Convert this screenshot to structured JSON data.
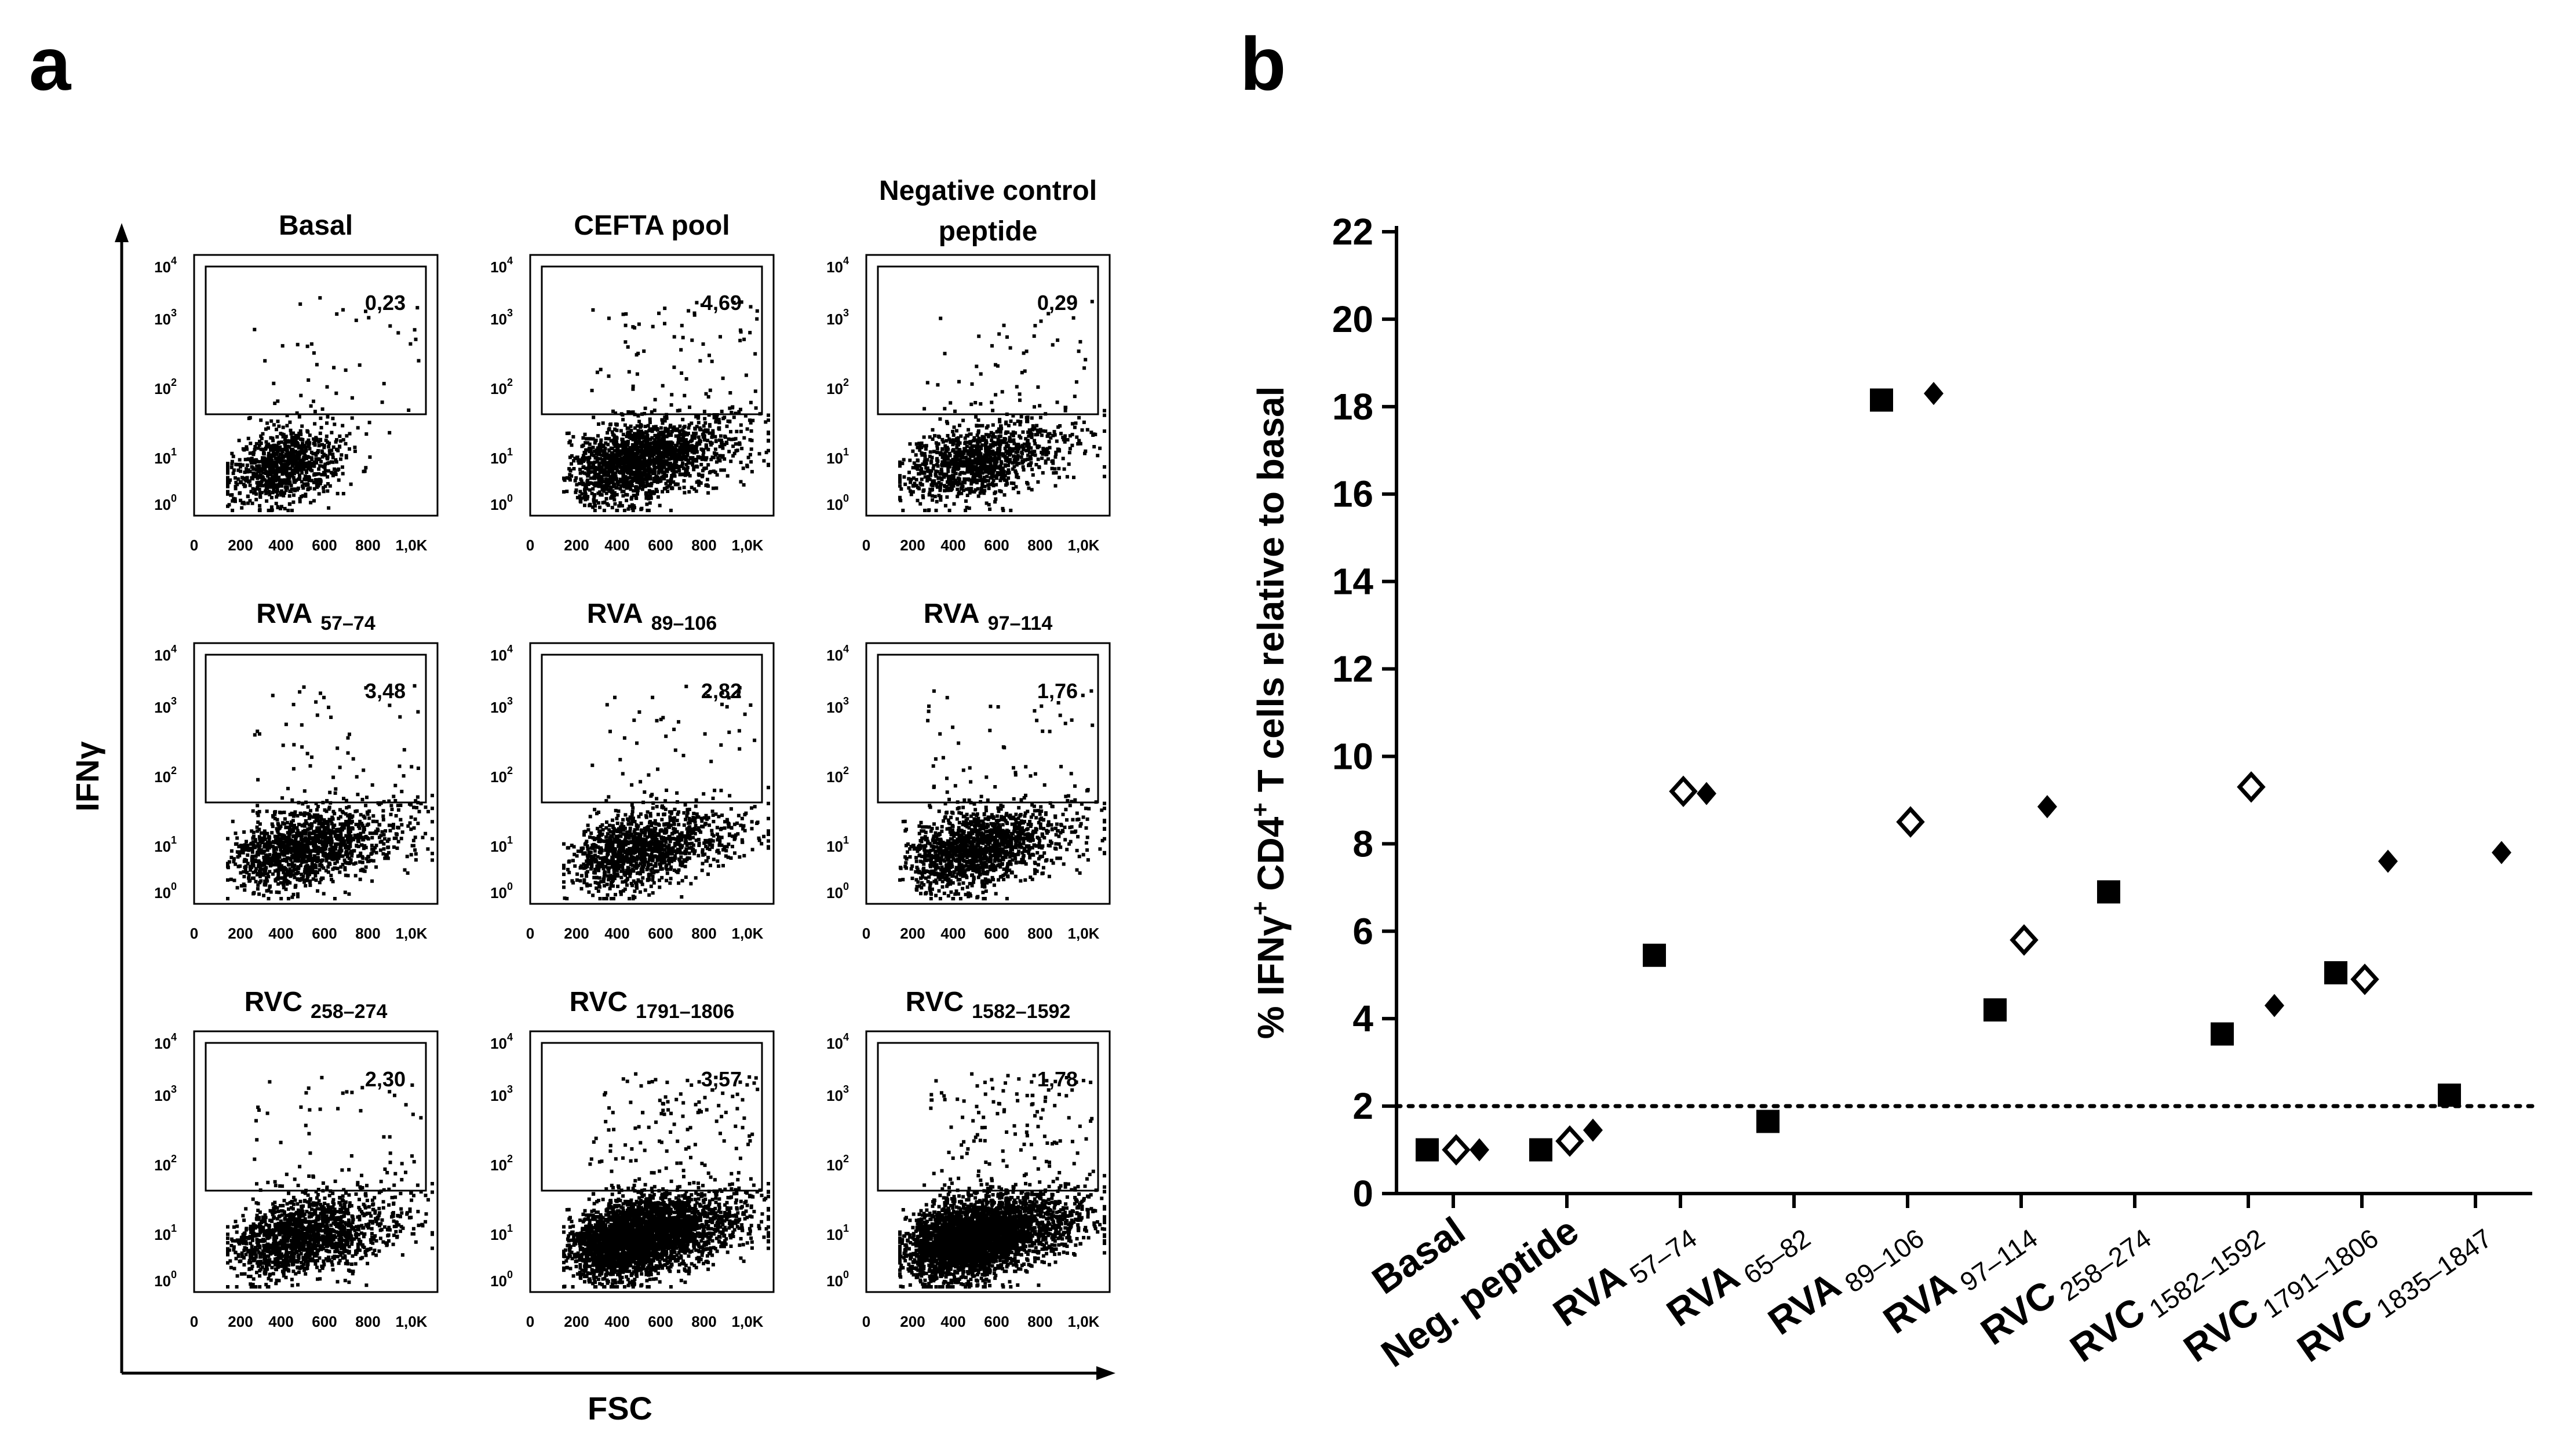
{
  "panel_a": {
    "label": "a",
    "y_axis_label": "IFNγ",
    "x_axis_label": "FSC",
    "x_ticks": [
      "0",
      "200",
      "400",
      "600",
      "800",
      "1,0K"
    ],
    "y_ticks": [
      "10",
      "10",
      "10",
      "10",
      "10"
    ],
    "y_tick_exps": [
      "0",
      "1",
      "2",
      "3",
      "4"
    ],
    "plots": [
      {
        "title": "Basal",
        "subscript": "",
        "gate_value": "0,23"
      },
      {
        "title": "CEFTA pool",
        "subscript": "",
        "gate_value": "4,69"
      },
      {
        "title": "Negative control",
        "title_line2": "peptide",
        "subscript": "",
        "gate_value": "0,29"
      },
      {
        "title": "RVA",
        "subscript": "57–74",
        "gate_value": "3,48"
      },
      {
        "title": "RVA",
        "subscript": "89–106",
        "gate_value": "2,82"
      },
      {
        "title": "RVA",
        "subscript": "97–114",
        "gate_value": "1,76"
      },
      {
        "title": "RVC",
        "subscript": "258–274",
        "gate_value": "2,30"
      },
      {
        "title": "RVC",
        "subscript": "1791–1806",
        "gate_value": "3,57"
      },
      {
        "title": "RVC",
        "subscript": "1582–1592",
        "gate_value": "1,78"
      }
    ]
  },
  "chart_data": {
    "type": "scatter",
    "panel_label": "b",
    "ylabel_prefix": "% IFNγ",
    "ylabel_sup1": "+",
    "ylabel_mid": " CD4",
    "ylabel_sup2": "+",
    "ylabel_suffix": " T cells relative to basal",
    "ylim": [
      0,
      22
    ],
    "yticks": [
      0,
      2,
      4,
      6,
      8,
      10,
      12,
      14,
      16,
      18,
      20,
      22
    ],
    "threshold": 2,
    "categories": [
      {
        "name": "Basal",
        "sub": ""
      },
      {
        "name": "Neg. peptide",
        "sub": ""
      },
      {
        "name": "RVA",
        "sub": "57–74"
      },
      {
        "name": "RVA",
        "sub": "65–82"
      },
      {
        "name": "RVA",
        "sub": "89–106"
      },
      {
        "name": "RVA",
        "sub": "97–114"
      },
      {
        "name": "RVC",
        "sub": "258–274"
      },
      {
        "name": "RVC",
        "sub": "1582–1592"
      },
      {
        "name": "RVC",
        "sub": "1791–1806"
      },
      {
        "name": "RVC",
        "sub": "1835–1847"
      }
    ],
    "series": [
      {
        "name": "square",
        "marker": "square-filled",
        "values": [
          1.0,
          1.0,
          5.45,
          1.65,
          18.15,
          4.2,
          6.9,
          3.65,
          5.05,
          2.25
        ]
      },
      {
        "name": "diamond-filled",
        "marker": "diamond-filled",
        "values": [
          1.0,
          1.45,
          9.15,
          null,
          18.3,
          8.85,
          null,
          4.3,
          7.6,
          7.8
        ]
      },
      {
        "name": "diamond-open",
        "marker": "diamond-open",
        "values": [
          1.0,
          1.2,
          9.2,
          null,
          8.5,
          5.8,
          null,
          9.3,
          4.9,
          null
        ]
      }
    ]
  }
}
